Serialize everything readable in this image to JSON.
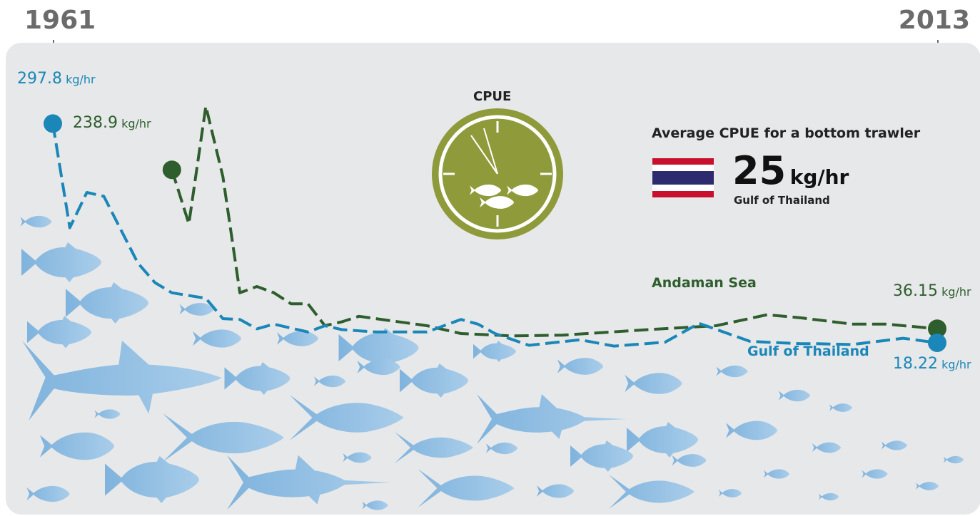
{
  "years": {
    "start": "1961",
    "end": "2013"
  },
  "clock": {
    "title": "CPUE",
    "face_color": "#8f9a3a"
  },
  "average": {
    "title": "Average CPUE for a bottom trawler",
    "value": "25",
    "unit": "kg/hr",
    "place": "Gulf of Thailand",
    "flag": "thailand-flag-icon"
  },
  "chart_data": {
    "type": "line",
    "x_range": [
      1961,
      2013
    ],
    "unit": "kg/hr",
    "series": [
      {
        "name": "Gulf of Thailand",
        "color": "#1a87b8",
        "points": [
          [
            1961,
            297.8
          ],
          [
            1962,
            165.0
          ],
          [
            1963,
            210.0
          ],
          [
            1964,
            205.0
          ],
          [
            1966,
            120.0
          ],
          [
            1967,
            95.0
          ],
          [
            1968,
            82.0
          ],
          [
            1970,
            75.0
          ],
          [
            1971,
            49.0
          ],
          [
            1972,
            48.0
          ],
          [
            1973,
            36.0
          ],
          [
            1974,
            42.0
          ],
          [
            1976,
            32.0
          ],
          [
            1977,
            40.0
          ],
          [
            1978,
            35.0
          ],
          [
            1980,
            32.0
          ],
          [
            1981,
            32.0
          ],
          [
            1983,
            32.0
          ],
          [
            1985,
            48.0
          ],
          [
            1986,
            42.0
          ],
          [
            1987,
            30.0
          ],
          [
            1989,
            15.0
          ],
          [
            1992,
            22.0
          ],
          [
            1994,
            14.0
          ],
          [
            1997,
            19.0
          ],
          [
            1999,
            43.0
          ],
          [
            2002,
            20.0
          ],
          [
            2005,
            17.0
          ],
          [
            2006,
            17.0
          ],
          [
            2008,
            16.0
          ],
          [
            2011,
            24.0
          ],
          [
            2013,
            18.22
          ]
        ],
        "first_label": {
          "value": "297.8",
          "unit": "kg/hr"
        },
        "last_label": {
          "value": "18.22",
          "unit": "kg/hr"
        }
      },
      {
        "name": "Andaman Sea",
        "color": "#2e5e2e",
        "points": [
          [
            1968,
            238.9
          ],
          [
            1969,
            170.0
          ],
          [
            1970,
            320.0
          ],
          [
            1971,
            230.0
          ],
          [
            1972,
            82.0
          ],
          [
            1973,
            90.0
          ],
          [
            1974,
            82.0
          ],
          [
            1975,
            68.0
          ],
          [
            1976,
            68.0
          ],
          [
            1977,
            40.0
          ],
          [
            1978,
            45.0
          ],
          [
            1979,
            52.0
          ],
          [
            1983,
            40.0
          ],
          [
            1985,
            30.0
          ],
          [
            1988,
            27.0
          ],
          [
            1991,
            28.0
          ],
          [
            1996,
            35.0
          ],
          [
            2000,
            40.0
          ],
          [
            2003,
            54.0
          ],
          [
            2005,
            50.0
          ],
          [
            2008,
            42.0
          ],
          [
            2010,
            42.0
          ],
          [
            2013,
            36.15
          ]
        ],
        "first_label": {
          "value": "238.9",
          "unit": "kg/hr"
        },
        "last_label": {
          "value": "36.15",
          "unit": "kg/hr"
        }
      }
    ]
  }
}
